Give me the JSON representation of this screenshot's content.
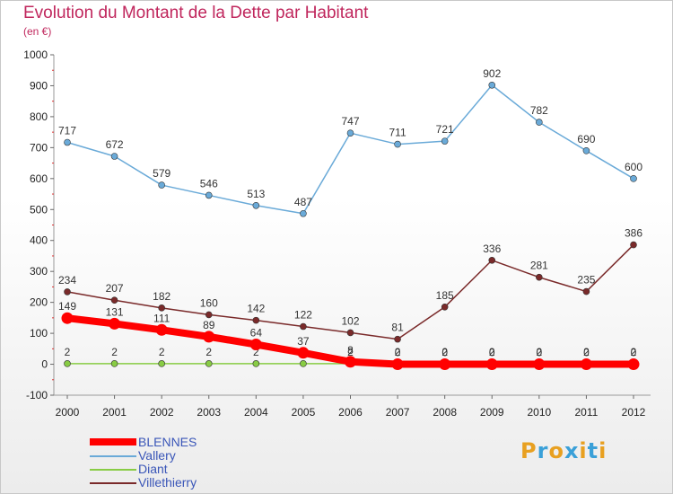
{
  "title": "Evolution du Montant de la Dette par Habitant",
  "subtitle": "(en €)",
  "brand": {
    "text": "Proxiti",
    "colors": [
      "#e8a020",
      "#3aa0d8",
      "#e8a020",
      "#3aa0d8",
      "#e8a020",
      "#3aa0d8",
      "#e8a020"
    ]
  },
  "chart_data": {
    "type": "line",
    "x": [
      2000,
      2001,
      2002,
      2003,
      2004,
      2005,
      2006,
      2007,
      2008,
      2009,
      2010,
      2011,
      2012
    ],
    "ylim": [
      -100,
      1000
    ],
    "yticks": [
      -100,
      0,
      100,
      200,
      300,
      400,
      500,
      600,
      700,
      800,
      900,
      1000
    ],
    "grid": false,
    "legend_position": "bottom-left",
    "series": [
      {
        "name": "BLENNES",
        "color": "#ff0000",
        "values": [
          149,
          131,
          111,
          89,
          64,
          37,
          8,
          0,
          0,
          0,
          0,
          0,
          0
        ],
        "labels": [
          "149",
          "131",
          "111",
          "89",
          "64",
          "37",
          "8",
          "0",
          "0",
          "0",
          "0",
          "0",
          "0"
        ]
      },
      {
        "name": "Vallery",
        "color": "#6aaad8",
        "values": [
          717,
          672,
          579,
          546,
          513,
          487,
          747,
          711,
          721,
          902,
          782,
          690,
          600
        ],
        "labels": [
          "717",
          "672",
          "579",
          "546",
          "513",
          "487",
          "747",
          "711",
          "721",
          "902",
          "782",
          "690",
          "600"
        ]
      },
      {
        "name": "Diant",
        "color": "#88cc44",
        "values": [
          2,
          2,
          2,
          2,
          2,
          2,
          2,
          2,
          2,
          2,
          2,
          2,
          2
        ],
        "labels": [
          "2",
          "2",
          "2",
          "2",
          "2",
          "2",
          "2",
          "2",
          "2",
          "2",
          "2",
          "2",
          "2"
        ]
      },
      {
        "name": "Villethierry",
        "color": "#7a2a2a",
        "values": [
          234,
          207,
          182,
          160,
          142,
          122,
          102,
          81,
          185,
          336,
          281,
          235,
          386
        ],
        "labels": [
          "234",
          "207",
          "182",
          "160",
          "142",
          "122",
          "102",
          "81",
          "185",
          "336",
          "281",
          "235",
          "386"
        ]
      }
    ]
  }
}
